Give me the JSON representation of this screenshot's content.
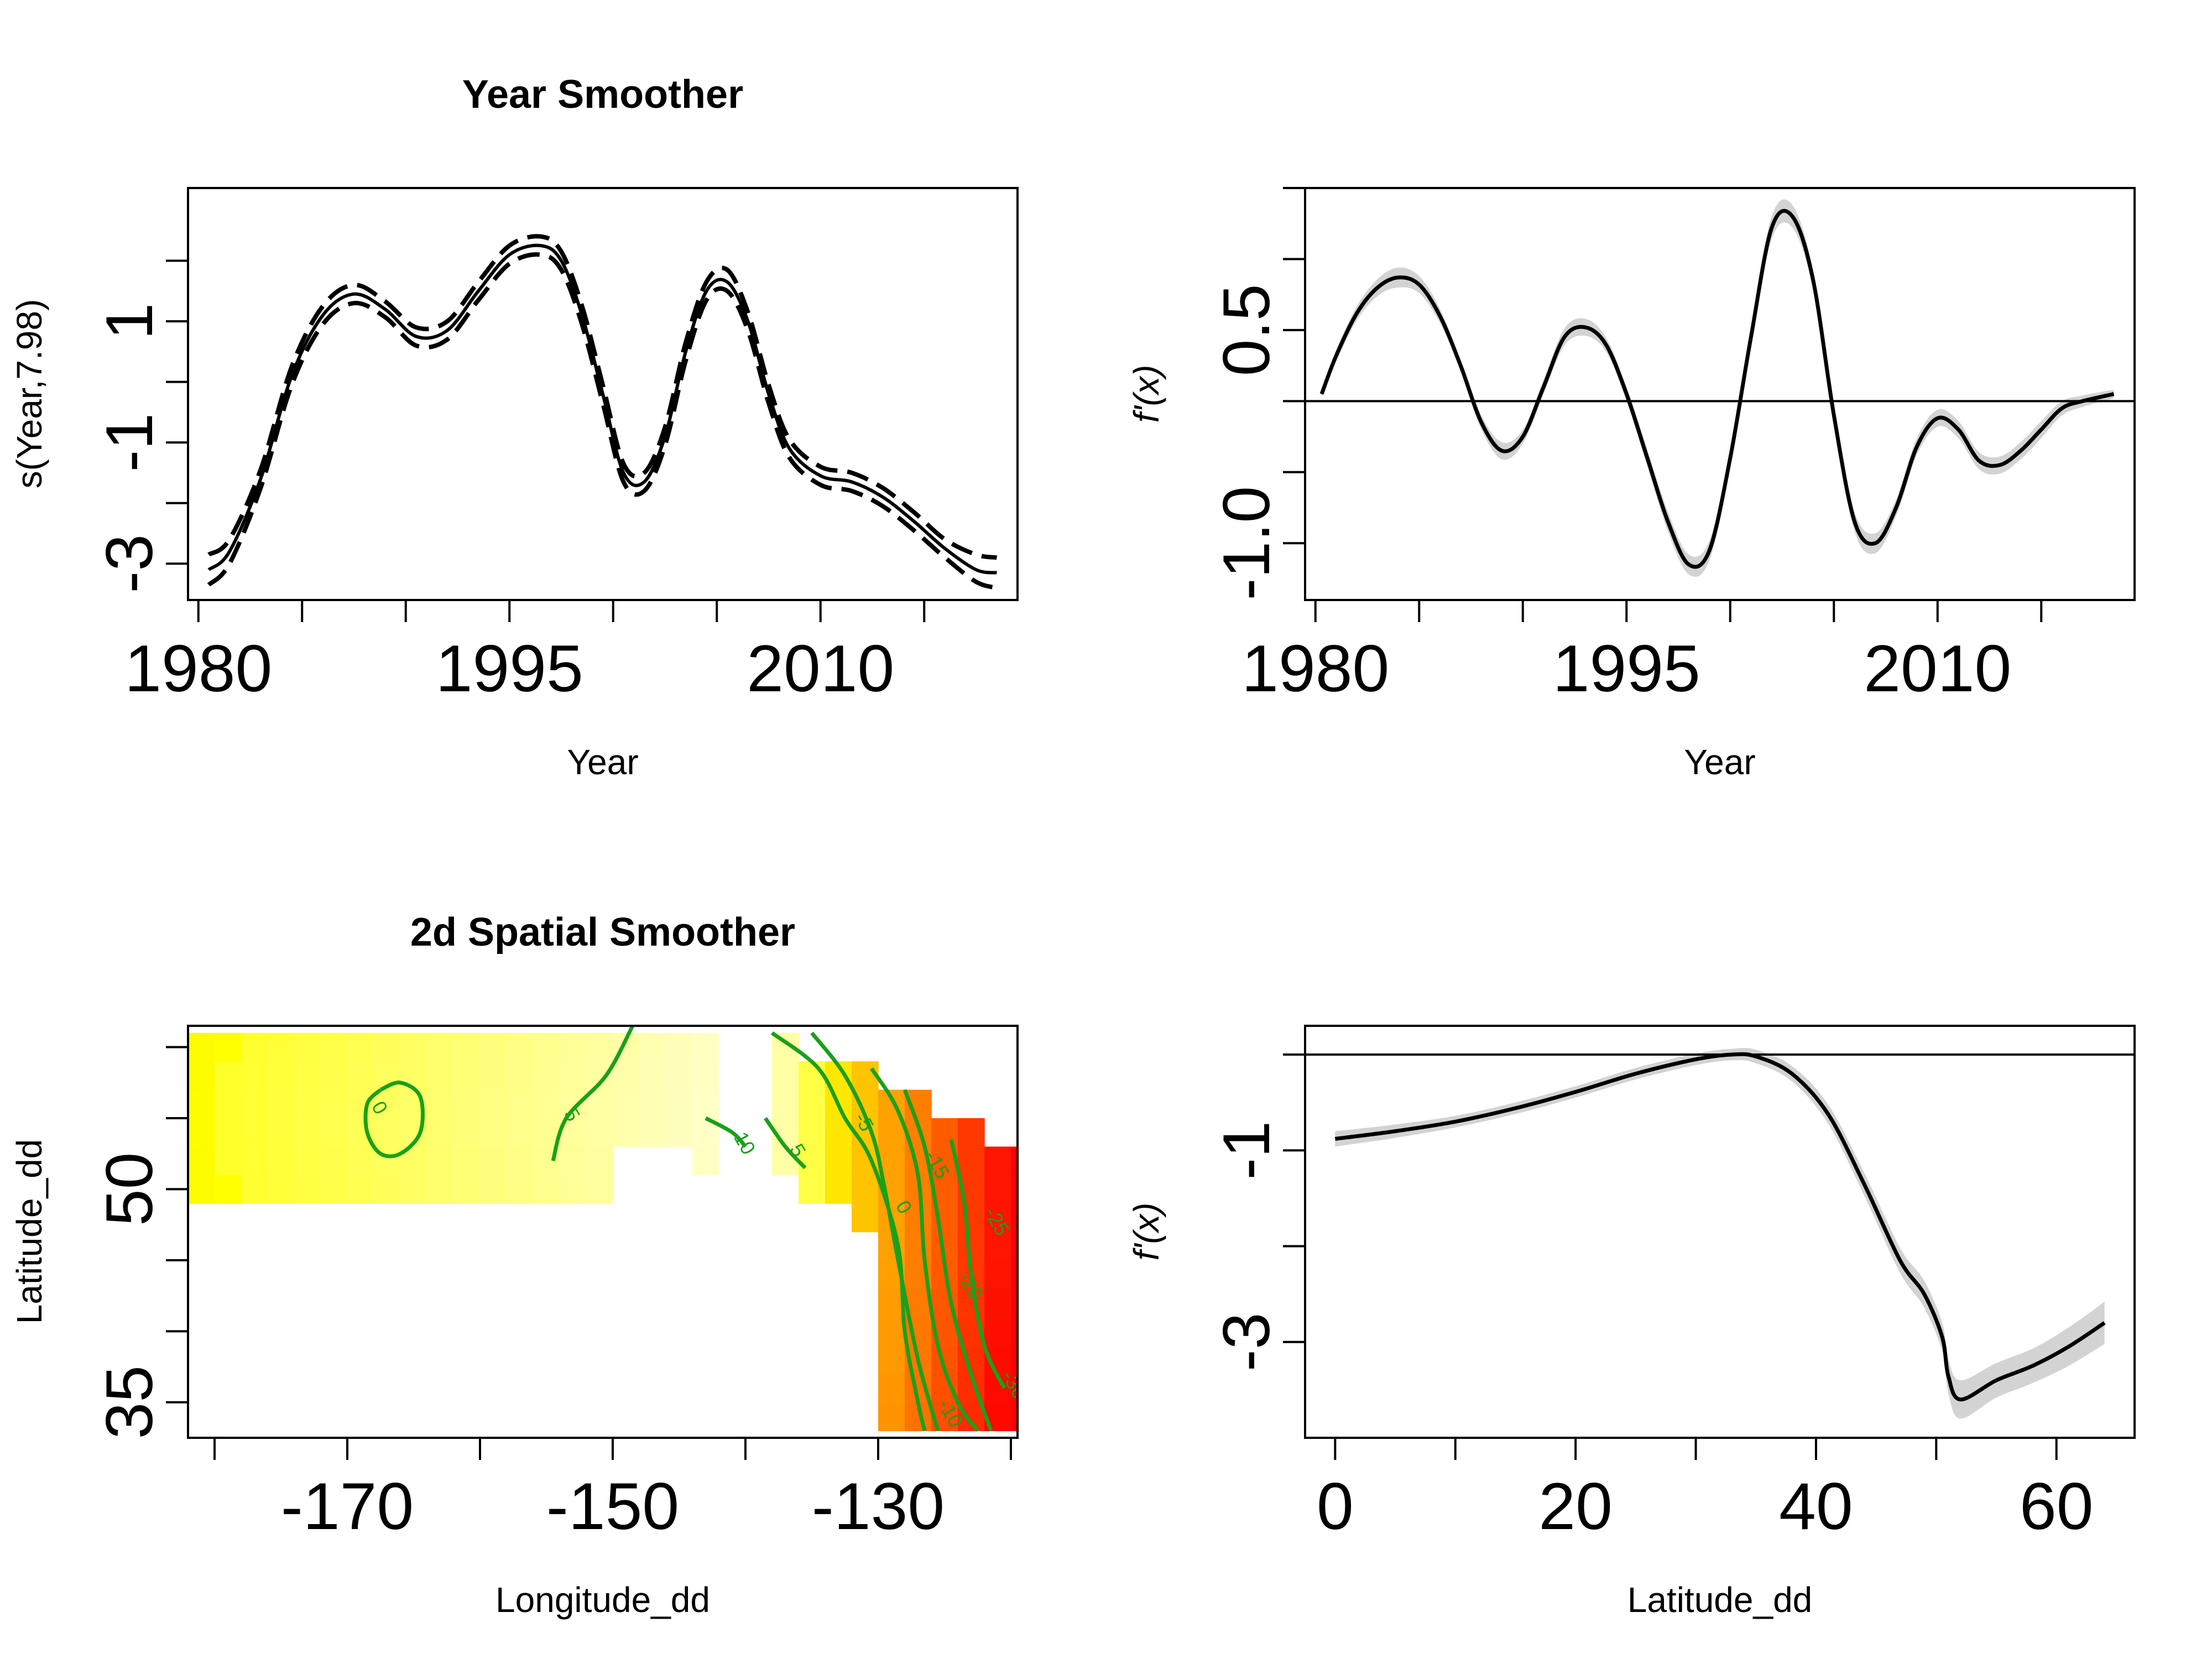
{
  "chart_data": [
    {
      "type": "line",
      "panel": "top-left",
      "title": "Year Smoother",
      "xlabel": "Year",
      "ylabel": "s(Year,7.98)",
      "xlim": [
        1979.5,
        2019.5
      ],
      "ylim": [
        -3.6,
        3.2
      ],
      "x_ticks": [
        1980,
        1985,
        1990,
        1995,
        2000,
        2005,
        2010,
        2015
      ],
      "x_tick_labels": [
        "1980",
        "1995",
        "2010"
      ],
      "x_tick_label_values": [
        1980,
        1995,
        2010
      ],
      "y_ticks": [
        -3,
        -2,
        -1,
        0,
        1,
        2
      ],
      "y_tick_labels": [
        "-3",
        "-1",
        "1"
      ],
      "y_tick_label_values": [
        -3,
        -1,
        1
      ],
      "series": [
        {
          "style": "solid",
          "x": [
            1980.5,
            1981.5,
            1983,
            1984.5,
            1986,
            1987.5,
            1989,
            1990.5,
            1992,
            1993.5,
            1995,
            1996.5,
            1997.5,
            1998.5,
            1999.5,
            2000.5,
            2001.5,
            2002.5,
            2003.5,
            2004.5,
            2005.5,
            2006.5,
            2007.5,
            2008.5,
            2010,
            2011.5,
            2013,
            2014.5,
            2016,
            2017.5,
            2018.5
          ],
          "y": [
            -3.1,
            -2.8,
            -1.6,
            0.1,
            1.1,
            1.45,
            1.2,
            0.75,
            0.85,
            1.5,
            2.1,
            2.25,
            2.0,
            1.1,
            -0.2,
            -1.5,
            -1.65,
            -0.9,
            0.5,
            1.5,
            1.65,
            1.0,
            -0.2,
            -1.1,
            -1.55,
            -1.65,
            -1.9,
            -2.3,
            -2.75,
            -3.1,
            -3.15
          ]
        },
        {
          "style": "dashed",
          "x": [
            1980.5,
            1981.5,
            1983,
            1984.5,
            1986,
            1987.5,
            1989,
            1990.5,
            1992,
            1993.5,
            1995,
            1996.5,
            1997.5,
            1998.5,
            1999.5,
            2000.5,
            2001.5,
            2002.5,
            2003.5,
            2004.5,
            2005.5,
            2006.5,
            2007.5,
            2008.5,
            2010,
            2011.5,
            2013,
            2014.5,
            2016,
            2017.5,
            2018.5
          ],
          "y": [
            -2.85,
            -2.6,
            -1.45,
            0.25,
            1.25,
            1.6,
            1.33,
            0.9,
            1.0,
            1.65,
            2.25,
            2.4,
            2.15,
            1.25,
            -0.05,
            -1.35,
            -1.5,
            -0.75,
            0.65,
            1.65,
            1.85,
            1.15,
            -0.05,
            -0.95,
            -1.4,
            -1.5,
            -1.75,
            -2.15,
            -2.6,
            -2.85,
            -2.9
          ]
        },
        {
          "style": "dashed",
          "x": [
            1980.5,
            1981.5,
            1983,
            1984.5,
            1986,
            1987.5,
            1989,
            1990.5,
            1992,
            1993.5,
            1995,
            1996.5,
            1997.5,
            1998.5,
            1999.5,
            2000.5,
            2001.5,
            2002.5,
            2003.5,
            2004.5,
            2005.5,
            2006.5,
            2007.5,
            2008.5,
            2010,
            2011.5,
            2013,
            2014.5,
            2016,
            2017.5,
            2018.5
          ],
          "y": [
            -3.35,
            -3.0,
            -1.75,
            -0.05,
            0.95,
            1.3,
            1.07,
            0.6,
            0.7,
            1.35,
            1.95,
            2.1,
            1.85,
            0.95,
            -0.35,
            -1.65,
            -1.8,
            -1.05,
            0.35,
            1.35,
            1.5,
            0.85,
            -0.35,
            -1.25,
            -1.7,
            -1.8,
            -2.05,
            -2.45,
            -2.9,
            -3.3,
            -3.4
          ]
        }
      ]
    },
    {
      "type": "line",
      "panel": "top-right",
      "xlabel": "Year",
      "ylabel": "f'(x)",
      "xlim": [
        1979.5,
        2019.5
      ],
      "ylim": [
        -1.4,
        1.5
      ],
      "x_ticks": [
        1980,
        1985,
        1990,
        1995,
        2000,
        2005,
        2010,
        2015
      ],
      "x_tick_labels": [
        "1980",
        "1995",
        "2010"
      ],
      "x_tick_label_values": [
        1980,
        1995,
        2010
      ],
      "y_ticks": [
        -1.0,
        -0.5,
        0.0,
        0.5,
        1.0,
        1.5
      ],
      "y_tick_labels": [
        "-1.0",
        "0.5"
      ],
      "y_tick_label_values": [
        -1.0,
        0.5
      ],
      "reference_line": 0,
      "series": [
        {
          "x": [
            1980.3,
            1981,
            1982,
            1983,
            1984,
            1985,
            1986,
            1987,
            1988,
            1989,
            1990,
            1991,
            1992,
            1993,
            1994,
            1995,
            1996,
            1997,
            1998,
            1999,
            2000,
            2001,
            2002,
            2003,
            2004,
            2005,
            2006,
            2007,
            2008,
            2009,
            2010,
            2011,
            2012,
            2013,
            2014,
            2015,
            2016,
            2017,
            2018.5
          ],
          "y": [
            0.05,
            0.32,
            0.62,
            0.8,
            0.87,
            0.82,
            0.6,
            0.25,
            -0.15,
            -0.35,
            -0.25,
            0.1,
            0.45,
            0.52,
            0.4,
            0.05,
            -0.4,
            -0.85,
            -1.15,
            -1.05,
            -0.4,
            0.45,
            1.22,
            1.3,
            0.85,
            -0.1,
            -0.85,
            -1.0,
            -0.75,
            -0.32,
            -0.12,
            -0.2,
            -0.42,
            -0.45,
            -0.35,
            -0.2,
            -0.05,
            0.0,
            0.05
          ],
          "band_halfwidth": [
            0.02,
            0.04,
            0.05,
            0.06,
            0.07,
            0.06,
            0.05,
            0.04,
            0.05,
            0.06,
            0.05,
            0.05,
            0.06,
            0.06,
            0.05,
            0.05,
            0.06,
            0.07,
            0.07,
            0.07,
            0.06,
            0.07,
            0.08,
            0.08,
            0.07,
            0.06,
            0.07,
            0.07,
            0.06,
            0.06,
            0.06,
            0.06,
            0.06,
            0.06,
            0.06,
            0.06,
            0.05,
            0.04,
            0.03
          ]
        }
      ]
    },
    {
      "type": "heatmap",
      "panel": "bottom-left",
      "title": "2d Spatial Smoother",
      "xlabel": "Longitude_dd",
      "ylabel": "Latitude_dd",
      "xlim": [
        -182,
        -119.5
      ],
      "ylim": [
        32.5,
        61.5
      ],
      "x_ticks": [
        -180,
        -170,
        -160,
        -150,
        -140,
        -130,
        -120
      ],
      "x_tick_labels": [
        "-170",
        "-150",
        "-130"
      ],
      "x_tick_label_values": [
        -170,
        -150,
        -130
      ],
      "y_ticks": [
        35,
        40,
        45,
        50,
        55,
        60
      ],
      "y_tick_labels": [
        "35",
        "50"
      ],
      "y_tick_label_values": [
        35,
        50
      ],
      "contour_labels": [
        {
          "text": "0",
          "lon": -168.0,
          "lat": 55.5
        },
        {
          "text": "5",
          "lon": -153.5,
          "lat": 55.0
        },
        {
          "text": "10",
          "lon": -140.5,
          "lat": 53.0
        },
        {
          "text": "5",
          "lon": -136.5,
          "lat": 52.5
        },
        {
          "text": "-5",
          "lon": -131.5,
          "lat": 54.5
        },
        {
          "text": "0",
          "lon": -128.5,
          "lat": 48.5
        },
        {
          "text": "-15",
          "lon": -126.0,
          "lat": 51.5
        },
        {
          "text": "-25",
          "lon": -121.5,
          "lat": 47.5
        },
        {
          "text": "-20",
          "lon": -123.5,
          "lat": 43.0
        },
        {
          "text": "-10",
          "lon": -125.0,
          "lat": 34.0
        },
        {
          "text": "-30",
          "lon": -120.2,
          "lat": 36.0
        }
      ]
    },
    {
      "type": "line",
      "panel": "bottom-right",
      "xlabel": "Latitude_dd",
      "ylabel": "f'(x)",
      "xlim": [
        -2.5,
        66.5
      ],
      "ylim": [
        -4.0,
        0.3
      ],
      "x_ticks": [
        0,
        10,
        20,
        30,
        40,
        50,
        60
      ],
      "x_tick_labels": [
        "0",
        "20",
        "40",
        "60"
      ],
      "x_tick_label_values": [
        0,
        20,
        40,
        60
      ],
      "y_ticks": [
        -3,
        -2,
        -1,
        0
      ],
      "y_tick_labels": [
        "-3",
        "-1"
      ],
      "y_tick_label_values": [
        -3,
        -1
      ],
      "reference_line": 0,
      "series": [
        {
          "x": [
            0,
            5,
            10,
            15,
            20,
            25,
            30,
            33,
            35,
            38,
            41,
            44,
            47,
            49,
            50.5,
            51,
            52,
            55,
            58,
            61,
            64
          ],
          "y": [
            -0.88,
            -0.8,
            -0.7,
            -0.56,
            -0.39,
            -0.2,
            -0.05,
            0.0,
            -0.02,
            -0.2,
            -0.62,
            -1.35,
            -2.15,
            -2.5,
            -2.95,
            -3.35,
            -3.6,
            -3.4,
            -3.25,
            -3.05,
            -2.8
          ],
          "band_halfwidth": [
            0.08,
            0.07,
            0.06,
            0.06,
            0.06,
            0.06,
            0.06,
            0.06,
            0.07,
            0.08,
            0.1,
            0.12,
            0.13,
            0.14,
            0.15,
            0.18,
            0.2,
            0.18,
            0.18,
            0.2,
            0.22
          ]
        }
      ]
    }
  ]
}
